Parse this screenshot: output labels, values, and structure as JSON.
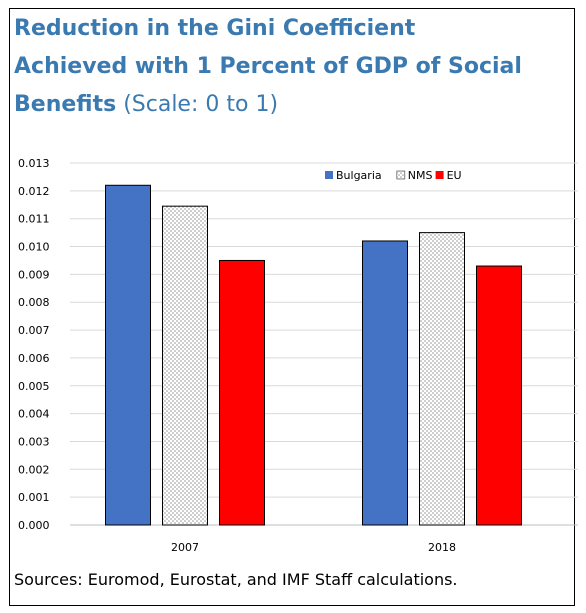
{
  "title": {
    "line1": "Reduction in the Gini Coefficient",
    "line2": "Achieved with 1 Percent of GDP of Social",
    "line3_bold": "Benefits",
    "line3_light": " (Scale: 0 to 1)"
  },
  "source": "Sources: Euromod, Eurostat, and IMF Staff calculations.",
  "chart_data": {
    "type": "bar",
    "categories": [
      "2007",
      "2018"
    ],
    "series": [
      {
        "name": "Bulgaria",
        "values": [
          0.0122,
          0.0102
        ],
        "color": "#4472C4",
        "pattern": "solid"
      },
      {
        "name": "NMS",
        "values": [
          0.01145,
          0.0105
        ],
        "color": "#FFFFFF",
        "pattern": "dotted"
      },
      {
        "name": "EU",
        "values": [
          0.0095,
          0.0093
        ],
        "color": "#FF0000",
        "pattern": "solid"
      }
    ],
    "ylim": [
      0,
      0.013
    ],
    "yticks": [
      "0.000",
      "0.001",
      "0.002",
      "0.003",
      "0.004",
      "0.005",
      "0.006",
      "0.007",
      "0.008",
      "0.009",
      "0.010",
      "0.011",
      "0.012",
      "0.013"
    ],
    "grid": true,
    "legend_position": "top"
  }
}
